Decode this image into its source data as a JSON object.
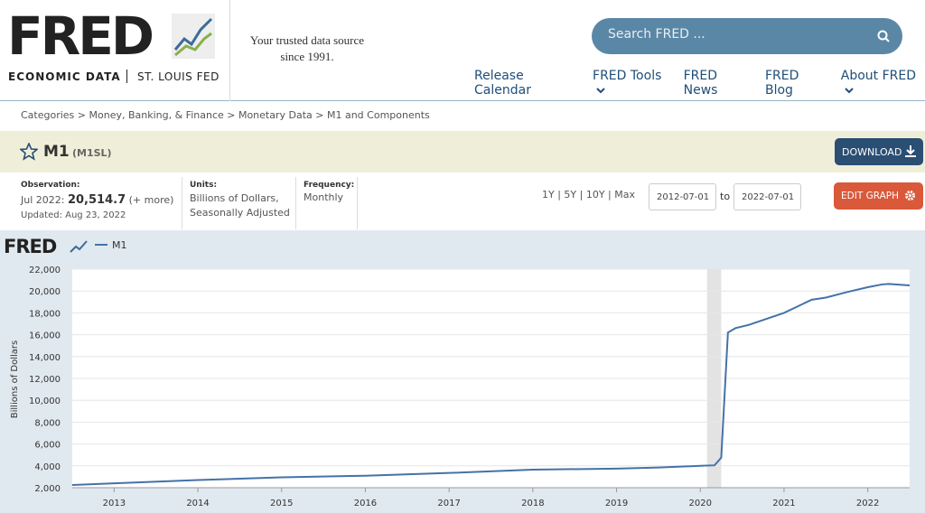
{
  "header": {
    "logo": "FRED",
    "logo_sub": "ECONOMIC DATA",
    "logo_org": "ST. LOUIS FED",
    "tagline": "Your trusted data source since 1991.",
    "search_placeholder": "Search FRED ...",
    "nav": [
      "Release Calendar",
      "FRED Tools",
      "FRED News",
      "FRED Blog",
      "About FRED"
    ]
  },
  "breadcrumb": "Categories > Money, Banking, & Finance > Monetary Data > M1 and Components",
  "series_header": {
    "title": "M1",
    "id": "(M1SL)",
    "download": "DOWNLOAD"
  },
  "info": {
    "observation_label": "Observation:",
    "observation_date": "Jul 2022:",
    "observation_value": "20,514.7",
    "more": "(+ more)",
    "updated": "Updated: Aug 23, 2022",
    "units_label": "Units:",
    "units": "Billions of Dollars, Seasonally Adjusted",
    "frequency_label": "Frequency:",
    "frequency": "Monthly"
  },
  "controls": {
    "ranges": "1Y | 5Y | 10Y | Max",
    "start": "2012-07-01",
    "to": "to",
    "end": "2022-07-01",
    "edit": "EDIT GRAPH"
  },
  "chart_data": {
    "type": "line",
    "watermark": "FRED",
    "y_label": "Billions of Dollars",
    "x": [
      2012.5,
      2013.0,
      2014.0,
      2015.0,
      2016.0,
      2017.0,
      2018.0,
      2019.0,
      2019.5,
      2020.0,
      2020.17,
      2020.25,
      2020.33,
      2020.42,
      2020.58,
      2021.0,
      2021.33,
      2021.5,
      2021.75,
      2022.0,
      2022.17,
      2022.25,
      2022.42,
      2022.5
    ],
    "series": [
      {
        "name": "M1",
        "color": "#4572a7",
        "values": [
          2250,
          2400,
          2700,
          2950,
          3100,
          3350,
          3650,
          3750,
          3850,
          4000,
          4050,
          4750,
          16200,
          16600,
          16900,
          18000,
          19200,
          19400,
          19900,
          20350,
          20600,
          20650,
          20550,
          20514.7
        ]
      }
    ],
    "recession": [
      2020.08,
      2020.25
    ],
    "xlim": [
      2012.5,
      2022.5
    ],
    "xticks": [
      2013,
      2014,
      2015,
      2016,
      2017,
      2018,
      2019,
      2020,
      2021,
      2022
    ],
    "ylim": [
      2000,
      22000
    ],
    "yticks": [
      {
        "value": 2000,
        "label": "2,000"
      },
      {
        "value": 4000,
        "label": "4,000"
      },
      {
        "value": 6000,
        "label": "6,000"
      },
      {
        "value": 8000,
        "label": "8,000"
      },
      {
        "value": 10000,
        "label": "10,000"
      },
      {
        "value": 12000,
        "label": "12,000"
      },
      {
        "value": 14000,
        "label": "14,000"
      },
      {
        "value": 16000,
        "label": "16,000"
      },
      {
        "value": 18000,
        "label": "18,000"
      },
      {
        "value": 20000,
        "label": "20,000"
      },
      {
        "value": 22000,
        "label": "22,000"
      }
    ],
    "grid": true
  }
}
